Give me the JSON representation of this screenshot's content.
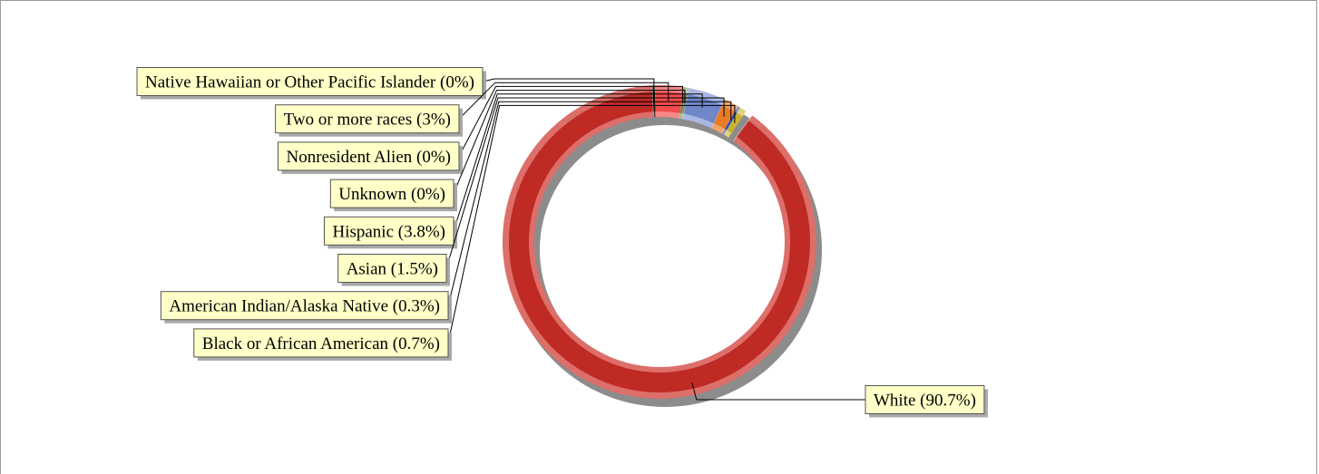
{
  "chart_data": {
    "type": "pie",
    "style": "doughnut",
    "title": "",
    "legend": "callout-labels",
    "slices": [
      {
        "label": "White",
        "value": 90.7,
        "display": "White (90.7%)",
        "color": "#bf2a24",
        "light": "#dc6f6a"
      },
      {
        "label": "Black or African American",
        "value": 0.7,
        "display": "Black or African American (0.7%)",
        "color": "#c9b22e",
        "light": "#e4d27a"
      },
      {
        "label": "American Indian/Alaska Native",
        "value": 0.3,
        "display": "American Indian/Alaska Native (0.3%)",
        "color": "#2f4f9e",
        "light": "#7f94c9"
      },
      {
        "label": "Asian",
        "value": 1.5,
        "display": "Asian (1.5%)",
        "color": "#e97a28",
        "light": "#f2a66c"
      },
      {
        "label": "Hispanic",
        "value": 3.8,
        "display": "Hispanic (3.8%)",
        "color": "#6f86c9",
        "light": "#a9b8e2"
      },
      {
        "label": "Unknown",
        "value": 0,
        "display": "Unknown (0%)",
        "color": "#8a8a8a",
        "light": "#bbbbbb"
      },
      {
        "label": "Nonresident Alien",
        "value": 0,
        "display": "Nonresident Alien (0%)",
        "color": "#5c8f3a",
        "light": "#93bd78"
      },
      {
        "label": "Two or more races",
        "value": 3,
        "display": "Two or more races (3%)",
        "color": "#f24b4b",
        "light": "#f68787"
      },
      {
        "label": "Native Hawaiian or Other Pacific Islander",
        "value": 0,
        "display": "Native Hawaiian or Other Pacific Islander  (0%)",
        "color": "#111111",
        "light": "#444444"
      }
    ],
    "colors": {
      "label_fill": "#ffffc8",
      "label_border": "#555555",
      "shadow": "#8c8c8c",
      "leader": "#000000"
    }
  }
}
